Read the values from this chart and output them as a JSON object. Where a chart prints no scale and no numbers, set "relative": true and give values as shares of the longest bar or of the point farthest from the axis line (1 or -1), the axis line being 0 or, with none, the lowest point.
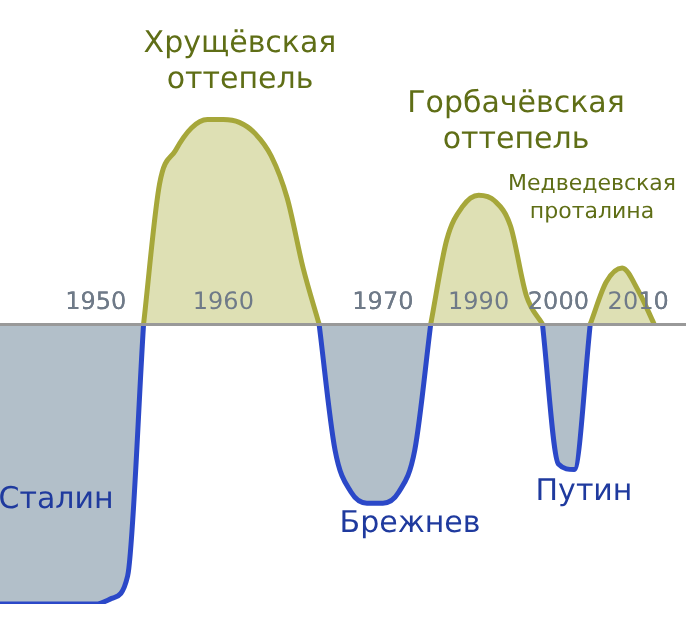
{
  "chart_data": {
    "type": "area",
    "relative": true,
    "categories": [
      null,
      null,
      null,
      null,
      null,
      null,
      "1950",
      null,
      null,
      null,
      null,
      null,
      null,
      null,
      "1960",
      null,
      null,
      null,
      null,
      null,
      null,
      null,
      null,
      null,
      "1970",
      null,
      null,
      null,
      null,
      null,
      "1990",
      null,
      null,
      null,
      null,
      "2000",
      null,
      null,
      null,
      null,
      "2010",
      null,
      null,
      null
    ],
    "series": [
      {
        "color": "#a6a73a",
        "values": [
          null,
          null,
          null,
          null,
          null,
          null,
          null,
          null,
          null,
          0,
          0.5,
          0.62,
          0.7,
          0.73,
          0.73,
          0.72,
          0.68,
          0.6,
          0.45,
          0.2,
          0,
          null,
          null,
          null,
          null,
          null,
          null,
          0,
          0.3,
          0.42,
          0.46,
          0.44,
          0.35,
          0.1,
          0,
          null,
          null,
          0,
          0.15,
          0.2,
          0.12,
          0,
          null,
          null
        ]
      },
      {
        "color": "#2b48c8",
        "values": [
          -1,
          -1,
          -1,
          -1,
          -1,
          -1,
          -1,
          -0.98,
          -0.9,
          0,
          null,
          null,
          null,
          null,
          null,
          null,
          null,
          null,
          null,
          null,
          0,
          -0.45,
          -0.6,
          -0.64,
          -0.64,
          -0.6,
          -0.45,
          0,
          null,
          null,
          null,
          null,
          null,
          null,
          0,
          -0.5,
          -0.52,
          0,
          null,
          null,
          null,
          null,
          null,
          null
        ]
      }
    ],
    "annotations": [
      "Хрущёвская оттепель",
      "Горбачёвская оттепель",
      "Медведевская проталина",
      "Сталин",
      "Брежнев",
      "Путин"
    ],
    "legend": false,
    "grid": false
  }
}
